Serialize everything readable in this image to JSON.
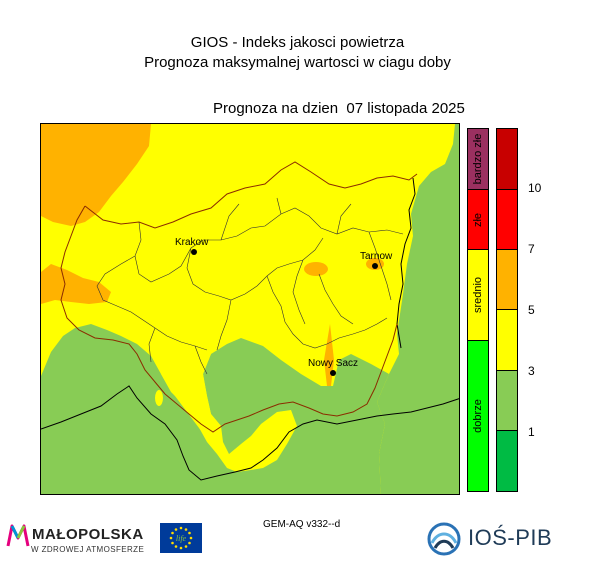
{
  "header": {
    "title_line1": "GIOS - Indeks jakosci powietrza",
    "title_line2": "Prognoza maksymalnej wartosci w ciagu doby",
    "forecast_date": "Prognoza na dzien  07 listopada 2025"
  },
  "map": {
    "cities": [
      {
        "name": "Krakow"
      },
      {
        "name": "Tarnow"
      },
      {
        "name": "Nowy Sacz"
      }
    ],
    "colors": {
      "yellow": "#ffff00",
      "orange": "#ffb200",
      "green": "#88cc55"
    }
  },
  "legend": {
    "categories": [
      {
        "label": "bardzo złe",
        "color": "#9b3060"
      },
      {
        "label": "złe",
        "color": "#ff0000"
      },
      {
        "label": "srednio",
        "color": "#ffff00"
      },
      {
        "label": "dobrze",
        "color": "#00ff00"
      }
    ],
    "scale": [
      {
        "color": "#c80000"
      },
      {
        "color": "#ff0000"
      },
      {
        "color": "#ffb200"
      },
      {
        "color": "#ffff00"
      },
      {
        "color": "#88cc55"
      },
      {
        "color": "#00bb44"
      }
    ],
    "tick_labels": [
      "10",
      "7",
      "5",
      "3",
      "1"
    ]
  },
  "footer": {
    "model": "GEM-AQ v332--d",
    "malopolska_name": "MAŁOPOLSKA",
    "malopolska_tagline": "W ZDROWEJ ATMOSFERZE",
    "eu_flag_text": "life",
    "ios_name": "IOŚ-PIB"
  }
}
